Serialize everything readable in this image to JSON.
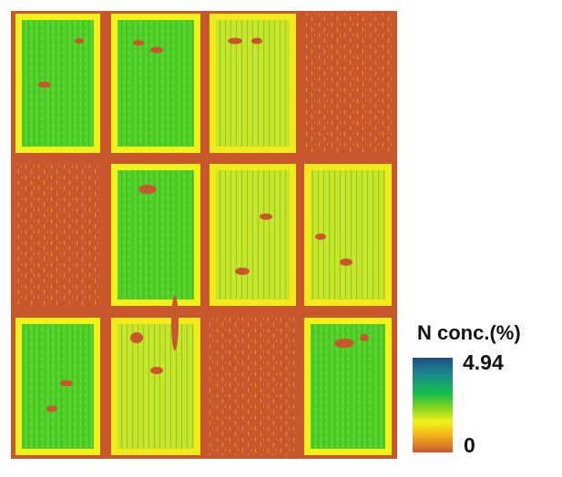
{
  "legend": {
    "title": "N conc.(%)",
    "max_label": "4.94",
    "min_label": "0",
    "scale": {
      "min": 0,
      "max": 4.94
    },
    "colors": [
      "#1f4f86",
      "#1c8a8a",
      "#14c04a",
      "#7ed321",
      "#f2f21a",
      "#f2b31a",
      "#c9572e"
    ]
  },
  "map": {
    "background_color": "#c9572e",
    "grid": {
      "rows": 3,
      "cols": 4
    },
    "plots": [
      {
        "row": 0,
        "col": 0,
        "level": "high"
      },
      {
        "row": 0,
        "col": 1,
        "level": "high"
      },
      {
        "row": 0,
        "col": 2,
        "level": "medium"
      },
      {
        "row": 0,
        "col": 3,
        "level": "bare"
      },
      {
        "row": 1,
        "col": 0,
        "level": "bare"
      },
      {
        "row": 1,
        "col": 1,
        "level": "high"
      },
      {
        "row": 1,
        "col": 2,
        "level": "medium"
      },
      {
        "row": 1,
        "col": 3,
        "level": "medium"
      },
      {
        "row": 2,
        "col": 0,
        "level": "high"
      },
      {
        "row": 2,
        "col": 1,
        "level": "medium"
      },
      {
        "row": 2,
        "col": 2,
        "level": "bare"
      },
      {
        "row": 2,
        "col": 3,
        "level": "high"
      }
    ]
  }
}
